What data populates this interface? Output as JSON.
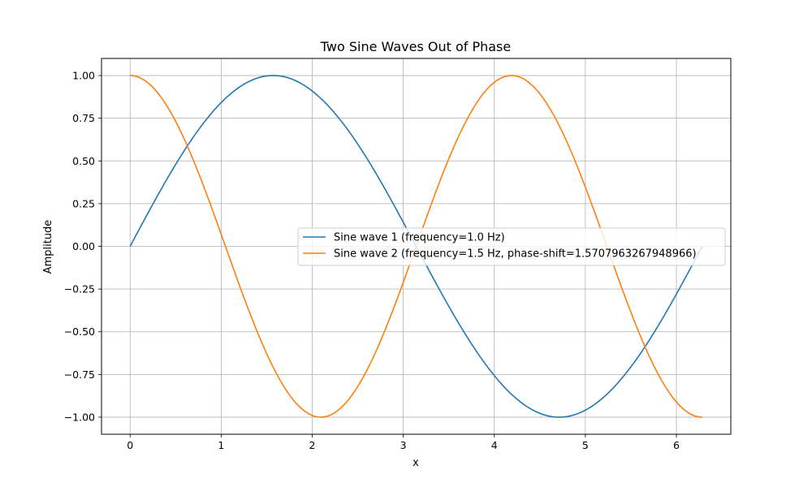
{
  "chart_data": {
    "type": "line",
    "title": "Two Sine Waves Out of Phase",
    "xlabel": "x",
    "ylabel": "Amplitude",
    "xlim": [
      -0.3142,
      6.5973
    ],
    "ylim": [
      -1.1,
      1.1
    ],
    "xticks": [
      0,
      1,
      2,
      3,
      4,
      5,
      6
    ],
    "xtick_labels": [
      "0",
      "1",
      "2",
      "3",
      "4",
      "5",
      "6"
    ],
    "yticks": [
      1.0,
      0.75,
      0.5,
      0.25,
      0.0,
      -0.25,
      -0.5,
      -0.75,
      -1.0
    ],
    "ytick_labels": [
      "1.00",
      "0.75",
      "0.50",
      "0.25",
      "0.00",
      "−0.25",
      "−0.50",
      "−0.75",
      "−1.00"
    ],
    "grid": true,
    "legend_position": "center-right",
    "x_domain": [
      0,
      6.2832
    ],
    "series": [
      {
        "name": "Sine wave 1 (frequency=1.0 Hz)",
        "function": "sin(1.0*x)",
        "frequency": 1.0,
        "phase_shift": 0,
        "color": "#1f77b4"
      },
      {
        "name": "Sine wave 2 (frequency=1.5 Hz, phase-shift=1.5707963267948966)",
        "function": "sin(1.5*x + 1.5707963267948966)",
        "frequency": 1.5,
        "phase_shift": 1.5707963267948966,
        "color": "#ff7f0e"
      }
    ]
  }
}
